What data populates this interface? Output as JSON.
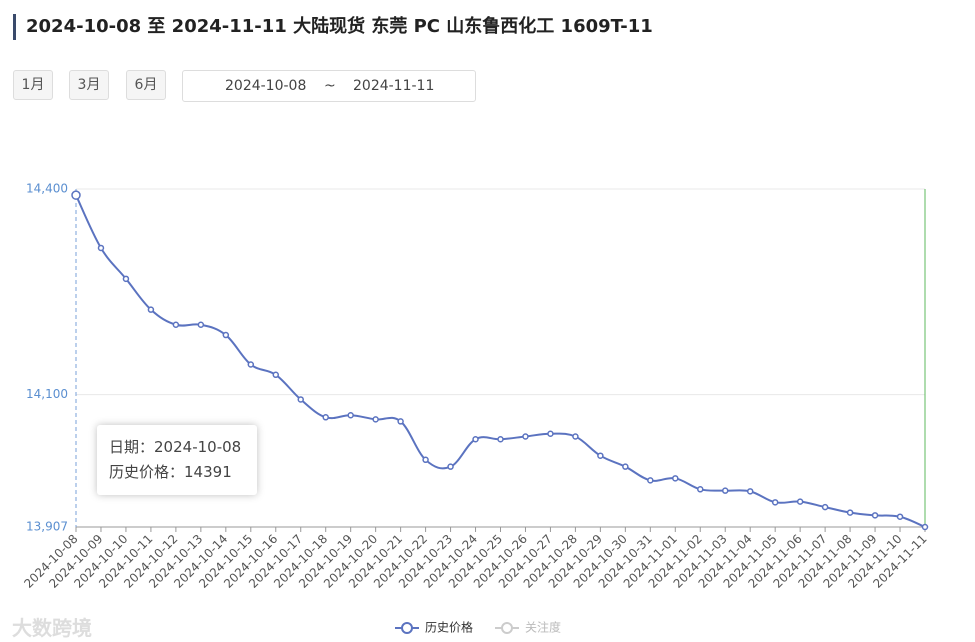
{
  "header": {
    "title": "2024-10-08 至 2024-11-11 大陆现货 东莞 PC 山东鲁西化工 1609T-11",
    "buttons": [
      "1月",
      "3月",
      "6月"
    ],
    "range_start": "2024-10-08",
    "range_sep": "~",
    "range_end": "2024-11-11"
  },
  "tooltip": {
    "date_label": "日期：",
    "value_label": "历史价格："
  },
  "watermark": "大数跨境",
  "chart_data": {
    "type": "line",
    "categories": [
      "2024-10-08",
      "2024-10-09",
      "2024-10-10",
      "2024-10-11",
      "2024-10-12",
      "2024-10-13",
      "2024-10-14",
      "2024-10-15",
      "2024-10-16",
      "2024-10-17",
      "2024-10-18",
      "2024-10-19",
      "2024-10-20",
      "2024-10-21",
      "2024-10-22",
      "2024-10-23",
      "2024-10-24",
      "2024-10-25",
      "2024-10-26",
      "2024-10-27",
      "2024-10-28",
      "2024-10-29",
      "2024-10-30",
      "2024-10-31",
      "2024-11-01",
      "2024-11-02",
      "2024-11-03",
      "2024-11-04",
      "2024-11-05",
      "2024-11-06",
      "2024-11-07",
      "2024-11-08",
      "2024-11-09",
      "2024-11-10",
      "2024-11-11"
    ],
    "series": [
      {
        "name": "历史价格",
        "color": "#5b73c0",
        "values": [
          14391,
          14314,
          14269,
          14224,
          14202,
          14202,
          14187,
          14144,
          14129,
          14093,
          14067,
          14070,
          14064,
          14061,
          14005,
          13995,
          14035,
          14035,
          14039,
          14043,
          14039,
          14011,
          13995,
          13975,
          13978,
          13962,
          13960,
          13959,
          13943,
          13944,
          13936,
          13928,
          13924,
          13922,
          13907
        ]
      }
    ],
    "hidden_series": [
      {
        "name": "关注度",
        "color": "#cccccc"
      }
    ],
    "ylim": [
      13907,
      14400
    ],
    "yticks": [
      {
        "value": 14400,
        "label": "14,400"
      },
      {
        "value": 14100,
        "label": "14,100"
      },
      {
        "value": 13907,
        "label": "13,907"
      }
    ],
    "grid": true
  }
}
